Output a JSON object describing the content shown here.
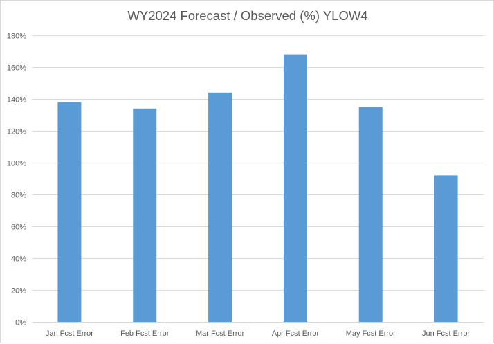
{
  "chart_data": {
    "type": "bar",
    "title": "WY2024 Forecast / Observed (%) YLOW4",
    "categories": [
      "Jan Fcst Error",
      "Feb Fcst Error",
      "Mar Fcst Error",
      "Apr Fcst Error",
      "May Fcst Error",
      "Jun Fcst Error"
    ],
    "values": [
      138,
      134,
      144,
      168,
      135,
      92
    ],
    "unit": "%",
    "ylim": [
      0,
      180
    ],
    "yticks": [
      "0%",
      "20%",
      "40%",
      "60%",
      "80%",
      "100%",
      "120%",
      "140%",
      "160%",
      "180%"
    ],
    "ytick_values": [
      0,
      20,
      40,
      60,
      80,
      100,
      120,
      140,
      160,
      180
    ],
    "xlabel": "",
    "ylabel": "",
    "grid": true,
    "legend": "none",
    "colors": {
      "bar": "#5b9bd5",
      "grid": "#d9d9d9",
      "text": "#595959"
    }
  }
}
